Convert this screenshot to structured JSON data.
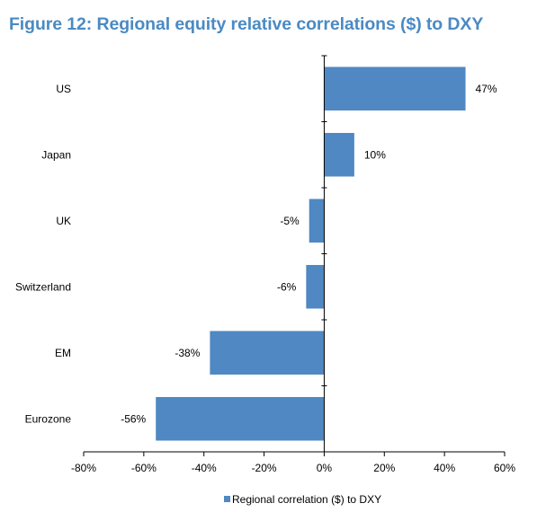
{
  "title": "Figure 12: Regional equity relative correlations ($) to DXY",
  "colors": {
    "title": "#4a8ac3",
    "bar": "#4f88c2",
    "axis": "#000000"
  },
  "chart_data": {
    "type": "bar",
    "orientation": "horizontal",
    "title": "Figure 12: Regional equity relative correlations ($) to DXY",
    "categories": [
      "US",
      "Japan",
      "UK",
      "Switzerland",
      "EM",
      "Eurozone"
    ],
    "series": [
      {
        "name": "Regional correlation ($) to DXY",
        "values": [
          47,
          10,
          -5,
          -6,
          -38,
          -56
        ],
        "labels": [
          "47%",
          "10%",
          "-5%",
          "-6%",
          "-38%",
          "-56%"
        ]
      }
    ],
    "xlim": [
      -80,
      60
    ],
    "xticks": [
      -80,
      -60,
      -40,
      -20,
      0,
      20,
      40,
      60
    ],
    "xtick_labels": [
      "-80%",
      "-60%",
      "-40%",
      "-20%",
      "0%",
      "20%",
      "40%",
      "60%"
    ],
    "xlabel": "",
    "ylabel": "",
    "grid": false,
    "legend": "bottom-center"
  }
}
